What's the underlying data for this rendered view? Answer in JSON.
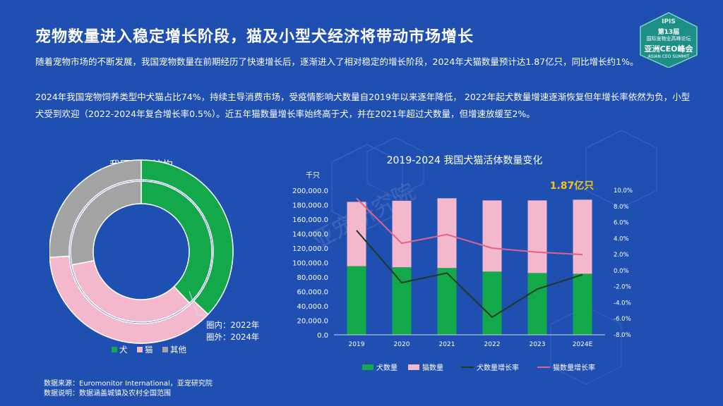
{
  "page": {
    "title": "宠物数量进入稳定增长阶段，猫及小型犬经济将带动市场增长",
    "paragraph1": "随着宠物市场的不断发展，我国宠物数量在前期经历了快速增长后，逐渐进入了相对稳定的增长阶段，2024年犬猫数量预计达1.87亿只，同比增长约1%。",
    "paragraph2": "2024年我国宠物饲养类型中犬猫占比74%，持续主导消费市场，受疫情影响犬数量自2019年以来逐年降低，  2022年起犬数量增速逐渐恢复但年增长率依然为负，小型犬受到欢迎（2022-2024年复合增长率0.5%）。近五年猫数量增长率始终高于犬，并在2021年超过犬数量，但增速放缓至2%。",
    "source_line1": "数据来源：Euromonitor International，亚宠研究院",
    "source_line2": "数据说明：数据涵盖城镇及农村全国范围",
    "watermark": "亚宠研究院"
  },
  "logo": {
    "line1": "IPIS",
    "line2": "第13届",
    "line3": "国际宠物业高峰论坛",
    "line4": "亚洲CEO峰会",
    "line5": "ASIAN CEO SUMMIT"
  },
  "colors": {
    "background": "#1f4fb0",
    "dog": "#13a84a",
    "cat": "#f4b8cc",
    "other": "#a3a3a3",
    "dog_rate": "#1e3a24",
    "cat_rate": "#e0628f",
    "highlight": "#f5c518"
  },
  "chart_data": [
    {
      "type": "pie",
      "subtype": "double-donut",
      "title": "我国养宠结构",
      "categories": [
        "犬",
        "猫",
        "其他"
      ],
      "series": [
        {
          "name": "2022年",
          "ring": "inner",
          "values": [
            38,
            34,
            28
          ]
        },
        {
          "name": "2024年",
          "ring": "outer",
          "values": [
            37,
            37,
            26
          ]
        }
      ],
      "annotation_line1": "圈内：2022年",
      "annotation_line2": "圈外：2024年",
      "legend_position": "bottom"
    },
    {
      "type": "bar",
      "subtype": "stacked-bar-with-lines",
      "title": "2019-2024 我国犬猫活体数量变化",
      "categories": [
        "2019",
        "2020",
        "2021",
        "2022",
        "2023",
        "2024E"
      ],
      "y_unit": "千只",
      "ylim": [
        0,
        200000
      ],
      "yticks": [
        "200,000.0",
        "180,000.0",
        "160,000.0",
        "140,000.0",
        "120,000.0",
        "100,000.0",
        "80,000.0",
        "60,000.0",
        "40,000.0",
        "20,000.0",
        "0.0"
      ],
      "y2lim": [
        -8,
        10
      ],
      "y2ticks": [
        "10.0%",
        "8.0%",
        "6.0%",
        "4.0%",
        "2.0%",
        "0.0%",
        "-2.0%",
        "-4.0%",
        "-6.0%",
        "-8.0%"
      ],
      "series": [
        {
          "name": "犬数量",
          "kind": "bar",
          "values": [
            95000,
            93500,
            92500,
            87500,
            85500,
            84500
          ]
        },
        {
          "name": "猫数量",
          "kind": "bar",
          "values": [
            89000,
            92000,
            96500,
            98500,
            100500,
            102500
          ]
        },
        {
          "name": "犬数量增长率",
          "kind": "line",
          "axis": "right",
          "values": [
            5.0,
            -1.5,
            -0.3,
            -5.8,
            -2.3,
            -0.5
          ]
        },
        {
          "name": "猫数量增长率",
          "kind": "line",
          "axis": "right",
          "values": [
            9.0,
            3.4,
            4.5,
            2.8,
            2.3,
            2.0
          ]
        }
      ],
      "annotation": "1.87亿只",
      "grid": false,
      "legend_position": "bottom"
    }
  ]
}
